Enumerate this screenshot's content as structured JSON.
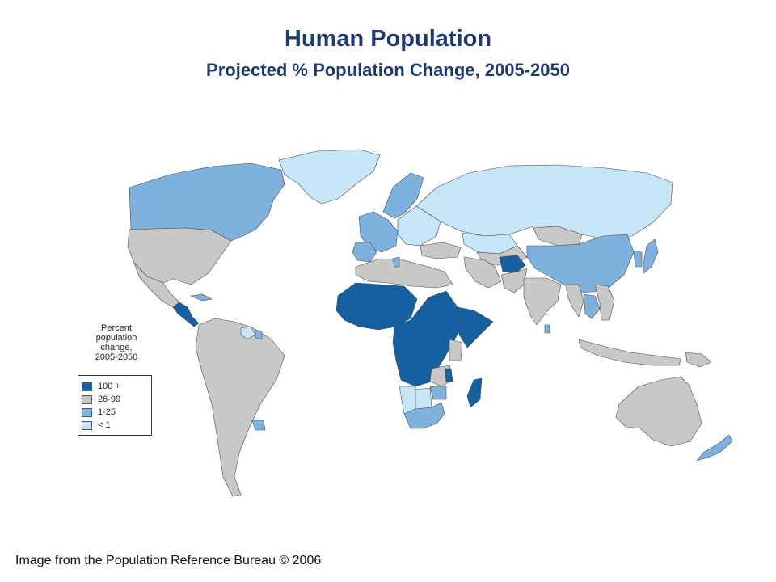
{
  "header": {
    "title": "Human Population",
    "subtitle": "Projected % Population Change, 2005-2050"
  },
  "legend": {
    "title_lines": [
      "Percent",
      "population",
      "change,",
      "2005-2050"
    ],
    "items": [
      {
        "label": "100 +",
        "color": "#1560a0"
      },
      {
        "label": "26-99",
        "color": "#c8c8c8"
      },
      {
        "label": "1-25",
        "color": "#7fb1de"
      },
      {
        "label": "< 1",
        "color": "#c6e6f8"
      }
    ]
  },
  "regions": [
    {
      "name": "Greenland",
      "category": "< 1"
    },
    {
      "name": "Canada",
      "category": "1-25"
    },
    {
      "name": "United States",
      "category": "26-99"
    },
    {
      "name": "Mexico",
      "category": "26-99"
    },
    {
      "name": "Central America",
      "category": "100 +"
    },
    {
      "name": "Cuba",
      "category": "1-25"
    },
    {
      "name": "South America",
      "category": "26-99"
    },
    {
      "name": "Guyana",
      "category": "< 1"
    },
    {
      "name": "Suriname",
      "category": "1-25"
    },
    {
      "name": "Uruguay",
      "category": "1-25"
    },
    {
      "name": "Russia",
      "category": "< 1"
    },
    {
      "name": "Eastern Europe",
      "category": "< 1"
    },
    {
      "name": "Western Europe",
      "category": "1-25"
    },
    {
      "name": "Scandinavia",
      "category": "1-25"
    },
    {
      "name": "Iberia",
      "category": "1-25"
    },
    {
      "name": "Turkey and Caucasus",
      "category": "26-99"
    },
    {
      "name": "Kazakhstan",
      "category": "< 1"
    },
    {
      "name": "Central Asia",
      "category": "26-99"
    },
    {
      "name": "Mongolia",
      "category": "26-99"
    },
    {
      "name": "China",
      "category": "1-25"
    },
    {
      "name": "Japan",
      "category": "1-25"
    },
    {
      "name": "Korea",
      "category": "1-25"
    },
    {
      "name": "Iran",
      "category": "26-99"
    },
    {
      "name": "Afghanistan",
      "category": "100 +"
    },
    {
      "name": "Pakistan",
      "category": "26-99"
    },
    {
      "name": "India",
      "category": "26-99"
    },
    {
      "name": "Sri Lanka",
      "category": "1-25"
    },
    {
      "name": "Myanmar",
      "category": "26-99"
    },
    {
      "name": "Thailand",
      "category": "1-25"
    },
    {
      "name": "Southeast Asia",
      "category": "26-99"
    },
    {
      "name": "Indonesia",
      "category": "26-99"
    },
    {
      "name": "Papua New Guinea",
      "category": "26-99"
    },
    {
      "name": "Australia",
      "category": "26-99"
    },
    {
      "name": "New Zealand",
      "category": "1-25"
    },
    {
      "name": "North Africa",
      "category": "26-99"
    },
    {
      "name": "Tunisia",
      "category": "1-25"
    },
    {
      "name": "Arabian Peninsula",
      "category": "100 +"
    },
    {
      "name": "Sahel and West Africa",
      "category": "100 +"
    },
    {
      "name": "Central and East Africa",
      "category": "100 +"
    },
    {
      "name": "Horn of Africa",
      "category": "100 +"
    },
    {
      "name": "Kenya",
      "category": "26-99"
    },
    {
      "name": "Zambia",
      "category": "26-99"
    },
    {
      "name": "Malawi",
      "category": "100 +"
    },
    {
      "name": "Zimbabwe",
      "category": "1-25"
    },
    {
      "name": "Botswana",
      "category": "< 1"
    },
    {
      "name": "Namibia",
      "category": "< 1"
    },
    {
      "name": "South Africa",
      "category": "1-25"
    },
    {
      "name": "Madagascar",
      "category": "100 +"
    }
  ],
  "footer": {
    "credit": "Image from the Population Reference Bureau © 2006"
  }
}
